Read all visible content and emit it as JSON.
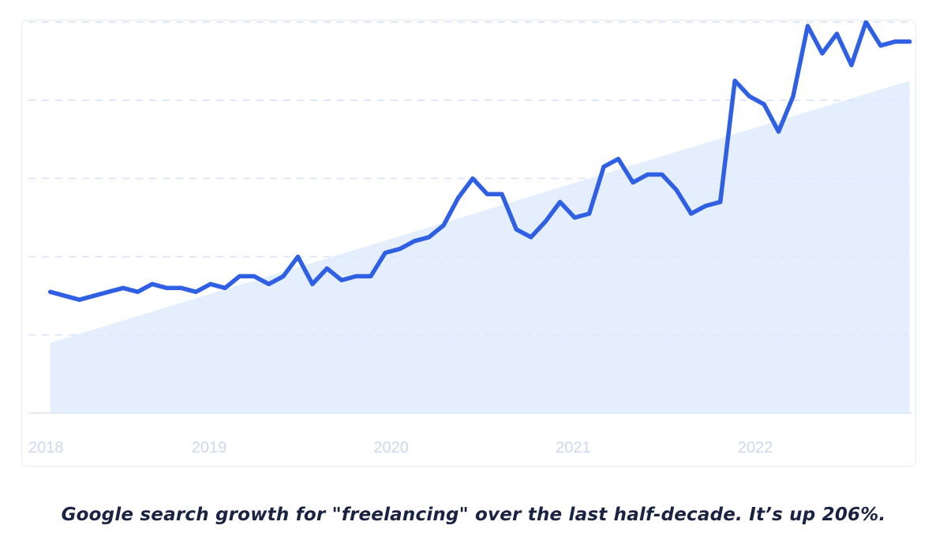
{
  "caption": "Google search growth for \"freelancing\" over the last half-decade. It’s up 206%.",
  "colors": {
    "line": "#2f5fe3",
    "trend_fill": "#dce8fb",
    "grid": "#d6e2f7",
    "tick_text": "#cdd8ee",
    "caption": "#1a2342"
  },
  "chart_data": {
    "type": "line",
    "title": "",
    "xlabel": "",
    "ylabel": "",
    "x_ticks": [
      "2018",
      "2019",
      "2020",
      "2021",
      "2022"
    ],
    "xlim": [
      2018.0,
      2022.85
    ],
    "ylim": [
      0,
      100
    ],
    "grid": true,
    "legend": "none",
    "series": [
      {
        "x": [
          2018.12,
          2018.2,
          2018.28,
          2018.36,
          2018.44,
          2018.52,
          2018.6,
          2018.68,
          2018.76,
          2018.84,
          2018.92,
          2019.0,
          2019.08,
          2019.16,
          2019.24,
          2019.32,
          2019.4,
          2019.48,
          2019.56,
          2019.64,
          2019.72,
          2019.8,
          2019.88,
          2019.96,
          2020.04,
          2020.12,
          2020.2,
          2020.28,
          2020.36,
          2020.44,
          2020.52,
          2020.6,
          2020.68,
          2020.76,
          2020.84,
          2020.92,
          2021.0,
          2021.08,
          2021.16,
          2021.24,
          2021.32,
          2021.4,
          2021.48,
          2021.56,
          2021.64,
          2021.72,
          2021.8,
          2021.88,
          2021.96,
          2022.04,
          2022.12,
          2022.2,
          2022.28,
          2022.36,
          2022.44,
          2022.52,
          2022.6,
          2022.68,
          2022.76,
          2022.84
        ],
        "y": [
          31,
          30,
          29,
          30,
          31,
          32,
          31,
          33,
          32,
          32,
          31,
          33,
          32,
          35,
          35,
          33,
          35,
          40,
          33,
          37,
          34,
          35,
          35,
          41,
          42,
          44,
          45,
          48,
          55,
          60,
          56,
          56,
          47,
          45,
          49,
          54,
          50,
          51,
          63,
          65,
          59,
          61,
          61,
          57,
          51,
          53,
          54,
          85,
          81,
          79,
          72,
          81,
          99,
          92,
          97,
          89,
          100,
          94,
          95,
          95
        ]
      }
    ],
    "trend_area": {
      "x": [
        2018.12,
        2022.84
      ],
      "y": [
        18,
        85
      ]
    }
  }
}
